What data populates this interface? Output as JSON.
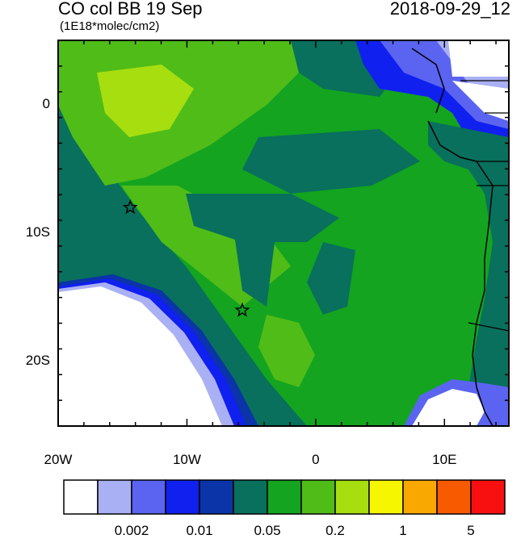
{
  "header": {
    "title": "CO col BB 19 Sep",
    "units": "(1E18*molec/cm2)",
    "datetime": "2018-09-29_12"
  },
  "axes": {
    "x_ticks": [
      {
        "lon": -20,
        "label": "20W"
      },
      {
        "lon": -10,
        "label": "10W"
      },
      {
        "lon": 0,
        "label": "0"
      },
      {
        "lon": 10,
        "label": "10E"
      }
    ],
    "y_ticks": [
      {
        "lat": 0,
        "label": "0"
      },
      {
        "lat": -10,
        "label": "10S"
      },
      {
        "lat": -20,
        "label": "20S"
      }
    ],
    "lon_range": [
      -20,
      15
    ],
    "lat_range": [
      -25,
      5
    ]
  },
  "colorbar": {
    "colors": [
      "#ffffff",
      "#aab0f4",
      "#5a64f0",
      "#1020ee",
      "#0a34a8",
      "#08705c",
      "#14a420",
      "#50bc18",
      "#a6de10",
      "#f6f600",
      "#f8a800",
      "#f85a00",
      "#f81010"
    ],
    "labels": [
      {
        "after_index": 1,
        "text": "0.002"
      },
      {
        "after_index": 3,
        "text": "0.01"
      },
      {
        "after_index": 5,
        "text": "0.05"
      },
      {
        "after_index": 7,
        "text": "0.2"
      },
      {
        "after_index": 9,
        "text": "1"
      },
      {
        "after_index": 11,
        "text": "5"
      }
    ]
  },
  "markers": [
    {
      "name": "star-marker-west",
      "lon": -14.4,
      "lat": -8.0
    },
    {
      "name": "star-marker-south",
      "lon": -5.7,
      "lat": -16.0
    }
  ]
}
